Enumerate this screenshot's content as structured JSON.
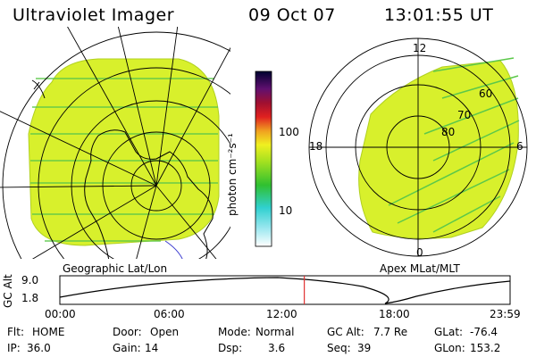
{
  "header": {
    "instrument": "Ultraviolet Imager",
    "date": "09 Oct 07",
    "time": "13:01:55 UT"
  },
  "left_panel": {
    "caption": "Geographic Lat/Lon"
  },
  "right_panel": {
    "caption": "Apex MLat/MLT",
    "mlt_labels": {
      "top": "12",
      "right": "6",
      "bottom": "0",
      "left": "18"
    },
    "lat_labels": [
      "60",
      "70",
      "80"
    ]
  },
  "colorbar": {
    "unit_label": "photon cm⁻²s⁻¹",
    "tick_labels": [
      "100",
      "10"
    ]
  },
  "altitude_plot": {
    "ylabel": "GC Alt",
    "y_ticks": [
      "9.0",
      "1.8"
    ],
    "x_ticks": [
      "00:00",
      "06:00",
      "12:00",
      "18:00",
      "23:59"
    ],
    "current_time_marker_hours": 13.03
  },
  "status": {
    "flt_label": "Flt:",
    "flt_value": "HOME",
    "ip_label": "IP:",
    "ip_value": "36.0",
    "door_label": "Door:",
    "door_value": "Open",
    "gain_label": "Gain:",
    "gain_value": "14",
    "mode_label": "Mode:",
    "mode_value": "Normal",
    "dsp_label": "Dsp:",
    "dsp_value": "3.6",
    "gcalt_label": "GC Alt:",
    "gcalt_value": "7.7 Re",
    "seq_label": "Seq:",
    "seq_value": "39",
    "glat_label": "GLat:",
    "glat_value": "-76.4",
    "glon_label": "GLon:",
    "glon_value": "153.2"
  },
  "colors": {
    "image_fill": "#d8f02c",
    "stripe": "#5cc84a",
    "marker": "#e03030"
  }
}
